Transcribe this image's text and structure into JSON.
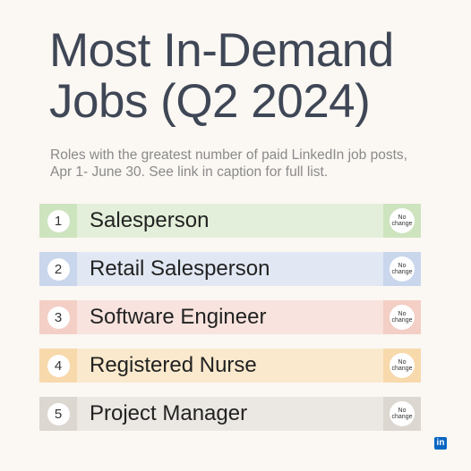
{
  "title": {
    "line1": "Most In-Demand",
    "line2": "Jobs (Q2 2024)"
  },
  "subtitle": "Roles with the greatest number of paid LinkedIn job posts, Apr 1- June 30. See link in caption for full list.",
  "jobs": [
    {
      "rank": "1",
      "label": "Salesperson",
      "change_line1": "No",
      "change_line2": "change",
      "row_color": "#e3efda",
      "tab_color": "#cde4bf"
    },
    {
      "rank": "2",
      "label": "Retail Salesperson",
      "change_line1": "No",
      "change_line2": "change",
      "row_color": "#e2e8f3",
      "tab_color": "#c9d6ec"
    },
    {
      "rank": "3",
      "label": "Software Engineer",
      "change_line1": "No",
      "change_line2": "change",
      "row_color": "#f8e3de",
      "tab_color": "#f3cfc6"
    },
    {
      "rank": "4",
      "label": "Registered Nurse",
      "change_line1": "No",
      "change_line2": "change",
      "row_color": "#fbe9cd",
      "tab_color": "#f7d9ac"
    },
    {
      "rank": "5",
      "label": "Project Manager",
      "change_line1": "No",
      "change_line2": "change",
      "row_color": "#ebe7e3",
      "tab_color": "#dcd7d1"
    }
  ],
  "logo": {
    "icon": "linkedin-icon",
    "text": "in",
    "color": "#0a66c2"
  }
}
